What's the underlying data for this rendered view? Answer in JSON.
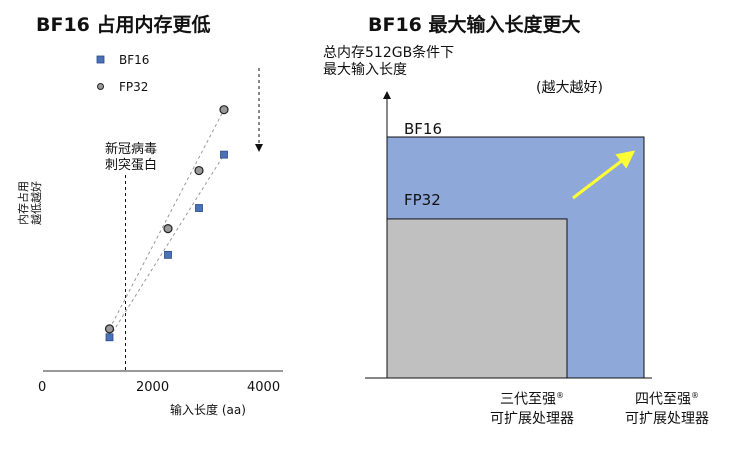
{
  "left_chart_title": "BF16 占用内存更低",
  "right_chart_title": "BF16 最大输入长度更大",
  "chart_data": [
    {
      "type": "scatter",
      "title": "BF16 占用内存更低",
      "xlabel": "输入长度 (aa)",
      "ylabel_line1": "内存占用",
      "ylabel_line2": "越低越好",
      "xlim": [
        0,
        4800
      ],
      "x_ticks": [
        "0",
        "2000",
        "4000"
      ],
      "annotation": {
        "x": 1650,
        "line1": "新冠病毒",
        "line2": "刺突蛋白"
      },
      "legend_position": "top-left",
      "series": [
        {
          "name": "BF16",
          "marker": "square",
          "color": "#4a72b8",
          "points": [
            [
              1330,
              0.36
            ],
            [
              2500,
              1.24
            ],
            [
              3120,
              1.74
            ],
            [
              3620,
              2.31
            ]
          ]
        },
        {
          "name": "FP32",
          "marker": "circle",
          "color": "#9a9a9a",
          "points": [
            [
              1330,
              0.45
            ],
            [
              2500,
              1.52
            ],
            [
              3120,
              2.14
            ],
            [
              3620,
              2.79
            ]
          ]
        }
      ],
      "trend_arrow": "down"
    },
    {
      "type": "area",
      "title": "BF16 最大输入长度更大",
      "ylabel_line1": "总内存512GB条件下",
      "ylabel_line2": "最大输入长度",
      "note": "(越大越好)",
      "categories": [
        "三代至强® 可扩展处理器",
        "四代至强® 可扩展处理器"
      ],
      "cat_line1": [
        "三代至强",
        "四代至强"
      ],
      "cat_line2": [
        "可扩展处理器",
        "可扩展处理器"
      ],
      "series": [
        {
          "name": "BF16",
          "values": [
            1.0,
            1.0
          ],
          "color": "#8fa8da"
        },
        {
          "name": "FP32",
          "values": [
            0.66,
            0.66
          ],
          "color": "#c0c0c0"
        }
      ],
      "arrow_color": "#ffff33"
    }
  ]
}
